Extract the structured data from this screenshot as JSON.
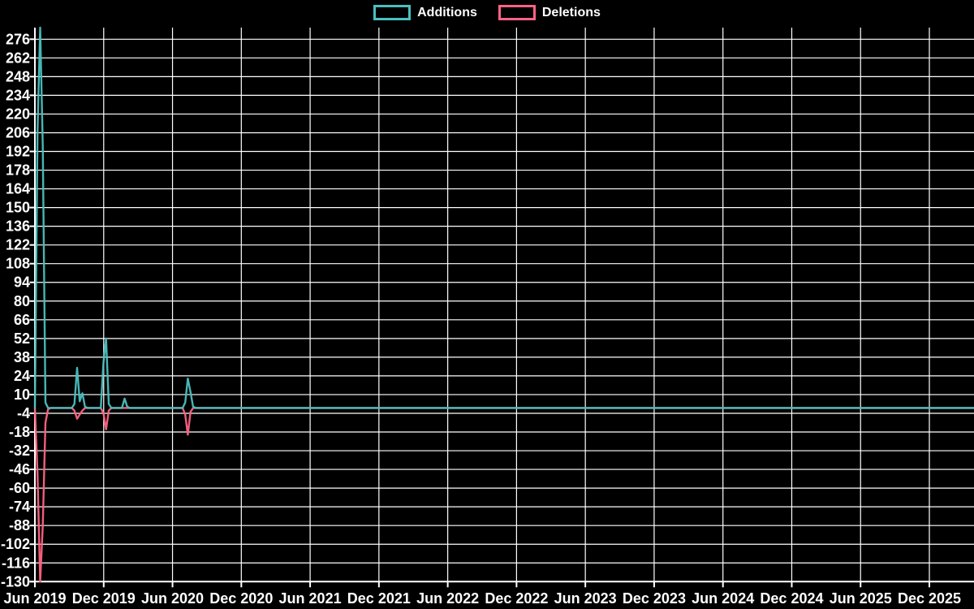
{
  "legend": {
    "items": [
      {
        "label": "Additions",
        "color": "#4bc0c0"
      },
      {
        "label": "Deletions",
        "color": "#ff6384"
      }
    ]
  },
  "chart_data": {
    "type": "line",
    "title": "",
    "legend_position": "top",
    "grid": true,
    "background": "#000000",
    "grid_color": "#ffffff",
    "text_color": "#ffffff",
    "x_unit": "weeks since Jun 2019; x ticks every 6 months",
    "x_axis": {
      "tick_labels": [
        "Jun 2019",
        "Dec 2019",
        "Jun 2020",
        "Dec 2020",
        "Jun 2021",
        "Dec 2021",
        "Jun 2022",
        "Dec 2022",
        "Jun 2023",
        "Dec 2023",
        "Jun 2024",
        "Dec 2024",
        "Jun 2025",
        "Dec 2025"
      ]
    },
    "y_axis": {
      "min": -130,
      "max": 276,
      "step": 14,
      "tick_labels": [
        "276",
        "262",
        "248",
        "234",
        "220",
        "206",
        "192",
        "178",
        "164",
        "150",
        "136",
        "122",
        "108",
        "94",
        "80",
        "66",
        "52",
        "38",
        "24",
        "10",
        "-4",
        "-18",
        "-32",
        "-46",
        "-60",
        "-74",
        "-88",
        "-102",
        "-116",
        "-130"
      ]
    },
    "series": [
      {
        "name": "Additions",
        "color": "#4bc0c0",
        "points": [
          [
            0,
            0
          ],
          [
            1,
            206
          ],
          [
            2,
            290
          ],
          [
            3,
            196
          ],
          [
            4,
            4
          ],
          [
            5,
            0
          ],
          [
            14,
            0
          ],
          [
            15,
            3
          ],
          [
            16,
            30
          ],
          [
            17,
            5
          ],
          [
            18,
            11
          ],
          [
            19,
            1
          ],
          [
            20,
            0
          ],
          [
            25,
            0
          ],
          [
            26,
            34
          ],
          [
            27,
            52
          ],
          [
            28,
            3
          ],
          [
            29,
            0
          ],
          [
            33,
            0
          ],
          [
            34,
            7
          ],
          [
            35,
            1
          ],
          [
            36,
            0
          ],
          [
            56,
            0
          ],
          [
            57,
            4
          ],
          [
            58,
            22
          ],
          [
            59,
            12
          ],
          [
            60,
            1
          ],
          [
            61,
            0
          ],
          [
            356,
            0
          ]
        ]
      },
      {
        "name": "Deletions",
        "color": "#ff6384",
        "points": [
          [
            0,
            0
          ],
          [
            1,
            -49
          ],
          [
            2,
            -130
          ],
          [
            3,
            -88
          ],
          [
            4,
            -11
          ],
          [
            5,
            -1
          ],
          [
            6,
            0
          ],
          [
            14,
            0
          ],
          [
            15,
            -2
          ],
          [
            16,
            -8
          ],
          [
            17,
            -5
          ],
          [
            18,
            -2
          ],
          [
            19,
            0
          ],
          [
            25,
            0
          ],
          [
            26,
            -4
          ],
          [
            27,
            -16
          ],
          [
            28,
            -2
          ],
          [
            29,
            0
          ],
          [
            56,
            0
          ],
          [
            57,
            -5
          ],
          [
            58,
            -20
          ],
          [
            59,
            -3
          ],
          [
            60,
            0
          ],
          [
            356,
            0
          ]
        ]
      }
    ]
  }
}
